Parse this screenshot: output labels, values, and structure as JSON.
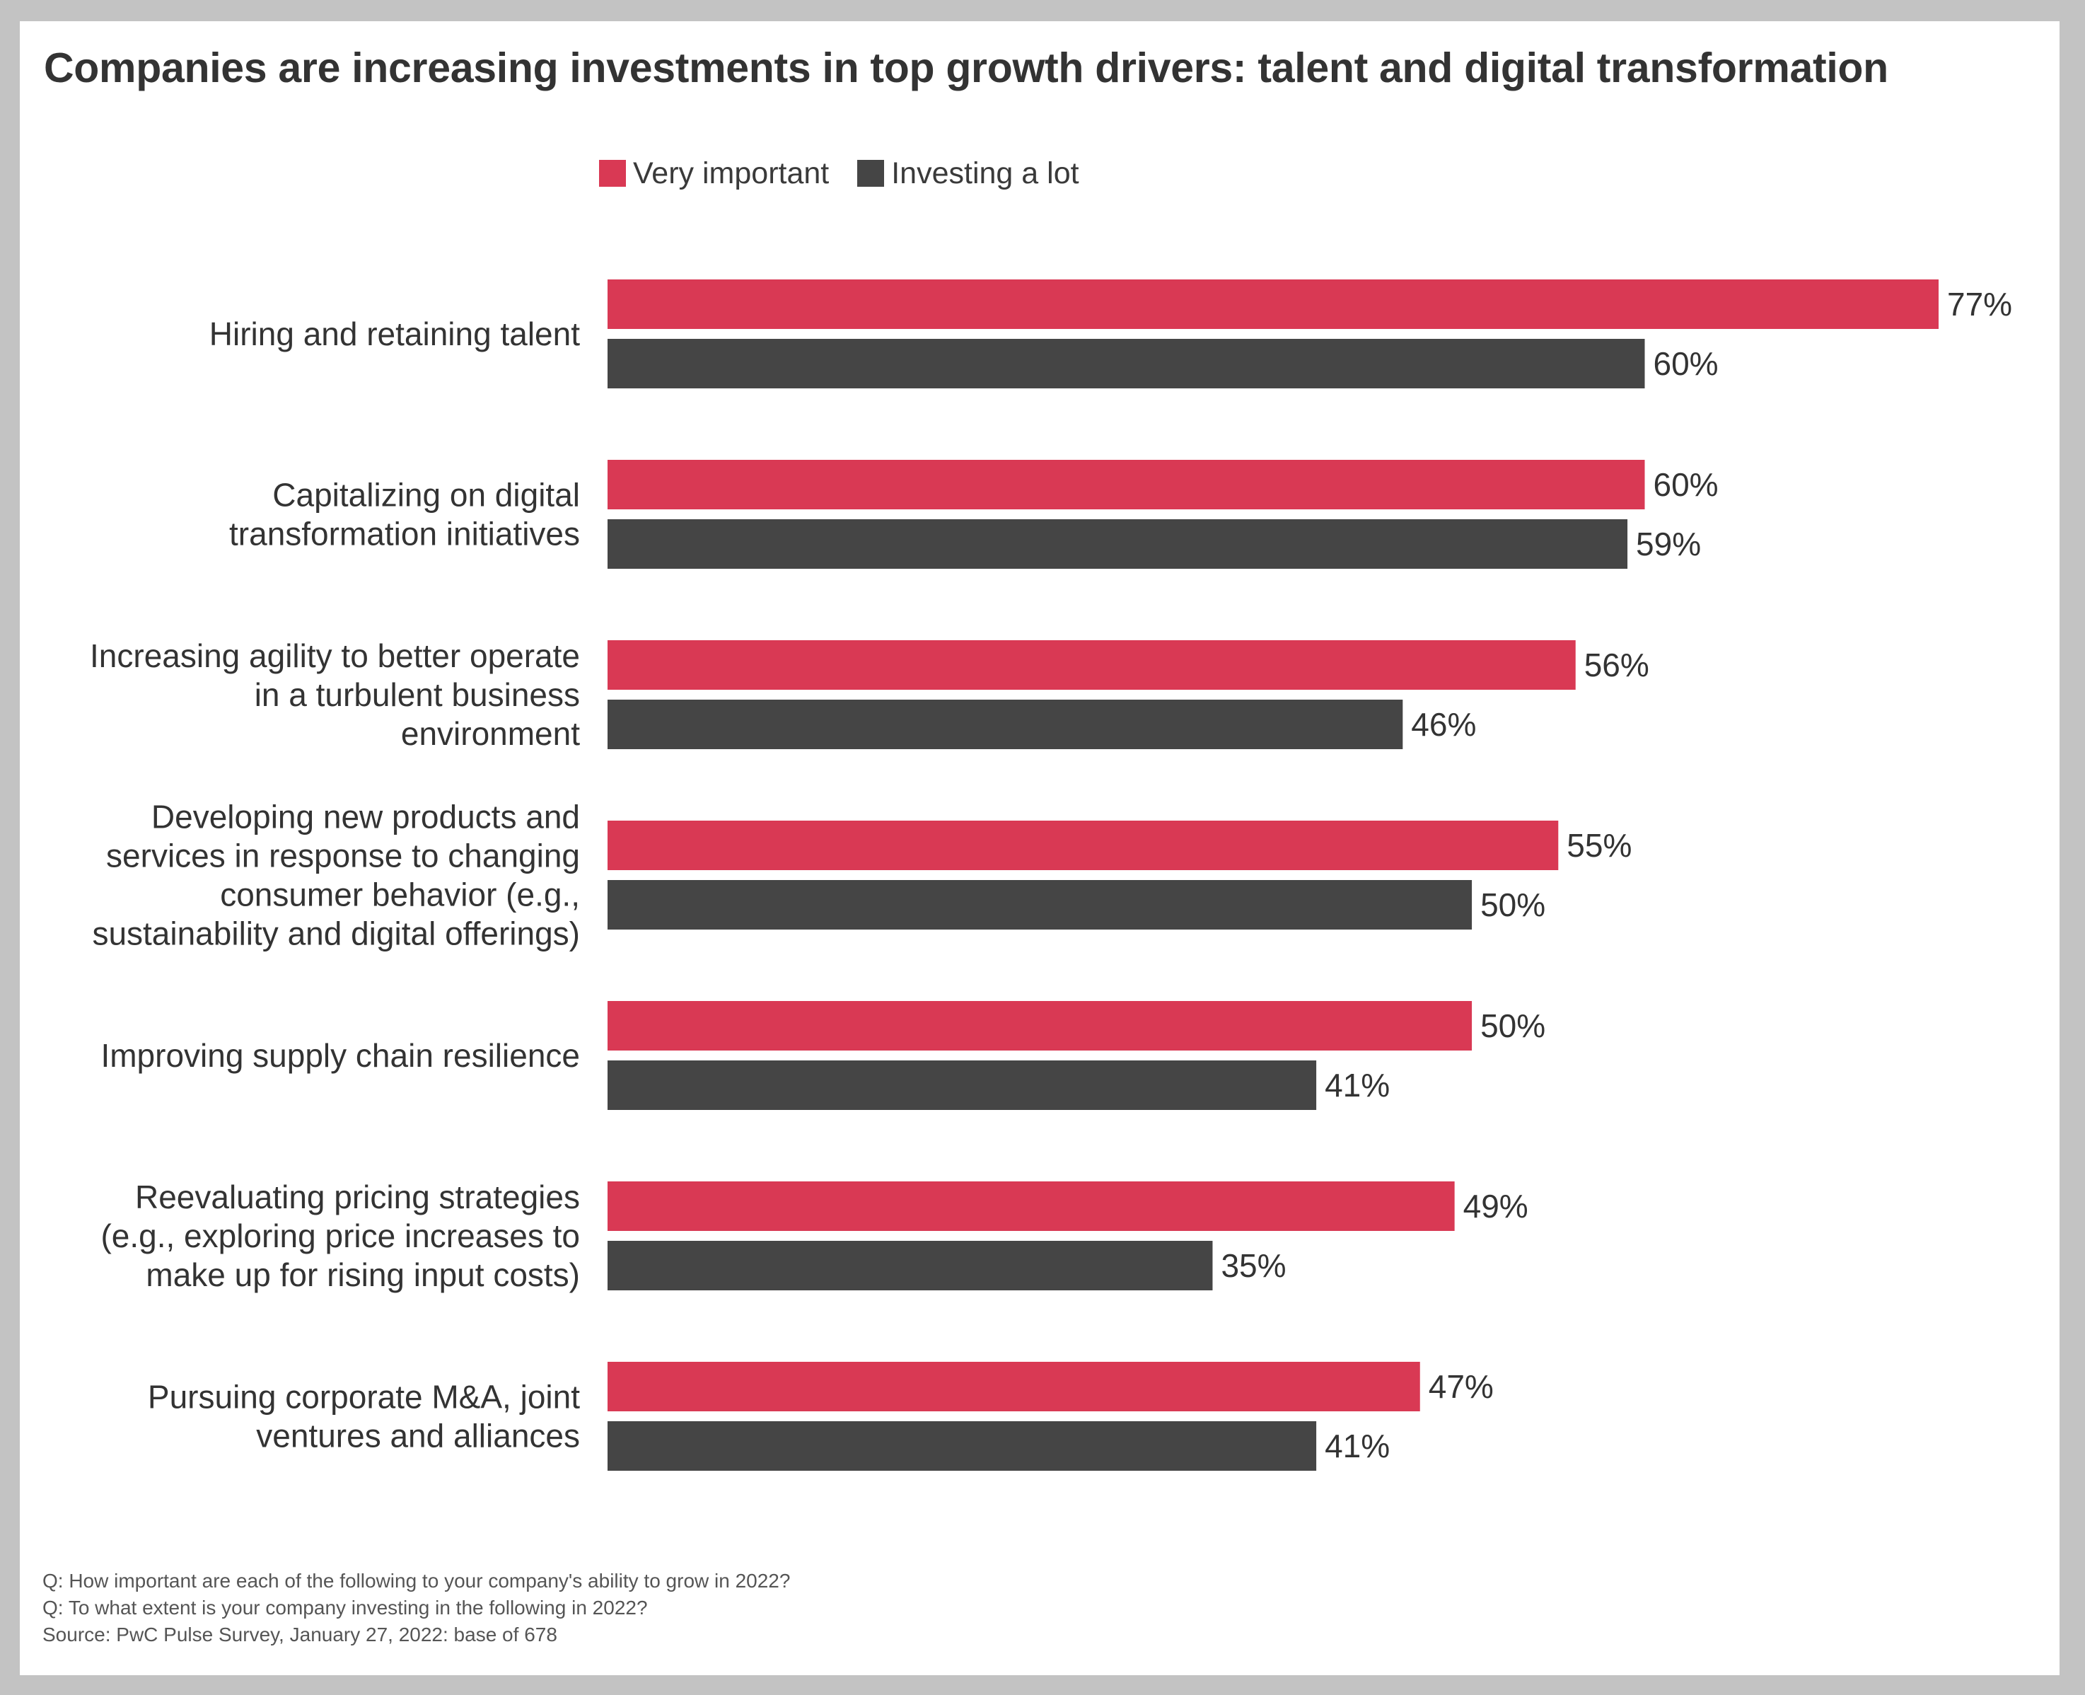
{
  "chart_data": {
    "type": "bar",
    "orientation": "horizontal",
    "title": "Companies are increasing investments in top growth drivers: talent and digital transformation",
    "categories": [
      [
        "Hiring and retaining talent"
      ],
      [
        "Capitalizing on digital",
        "transformation initiatives"
      ],
      [
        "Increasing agility to better operate",
        "in a turbulent business",
        "environment"
      ],
      [
        "Developing new products and",
        "services in response to changing",
        "consumer behavior (e.g.,",
        "sustainability and digital offerings)"
      ],
      [
        "Improving supply chain resilience"
      ],
      [
        "Reevaluating pricing strategies",
        "(e.g., exploring price increases to",
        "make up for rising input costs)"
      ],
      [
        "Pursuing corporate M&A, joint",
        "ventures and alliances"
      ]
    ],
    "series": [
      {
        "name": "Very important",
        "color": "#d93954",
        "values": [
          77,
          60,
          56,
          55,
          50,
          49,
          47
        ],
        "labels": [
          "77%",
          "60%",
          "56%",
          "55%",
          "50%",
          "49%",
          "47%"
        ]
      },
      {
        "name": "Investing a lot",
        "color": "#454545",
        "values": [
          60,
          59,
          46,
          50,
          41,
          35,
          41
        ],
        "labels": [
          "60%",
          "59%",
          "46%",
          "50%",
          "41%",
          "35%",
          "41%"
        ]
      }
    ],
    "xlim": [
      0,
      77
    ],
    "grid": false,
    "legend_position": "top"
  },
  "footnotes": [
    "Q: How important are each of the following to your company's ability to grow in 2022?",
    "Q: To what extent is your company investing in the following in 2022?",
    "Source: PwC Pulse Survey, January 27, 2022: base of 678"
  ]
}
